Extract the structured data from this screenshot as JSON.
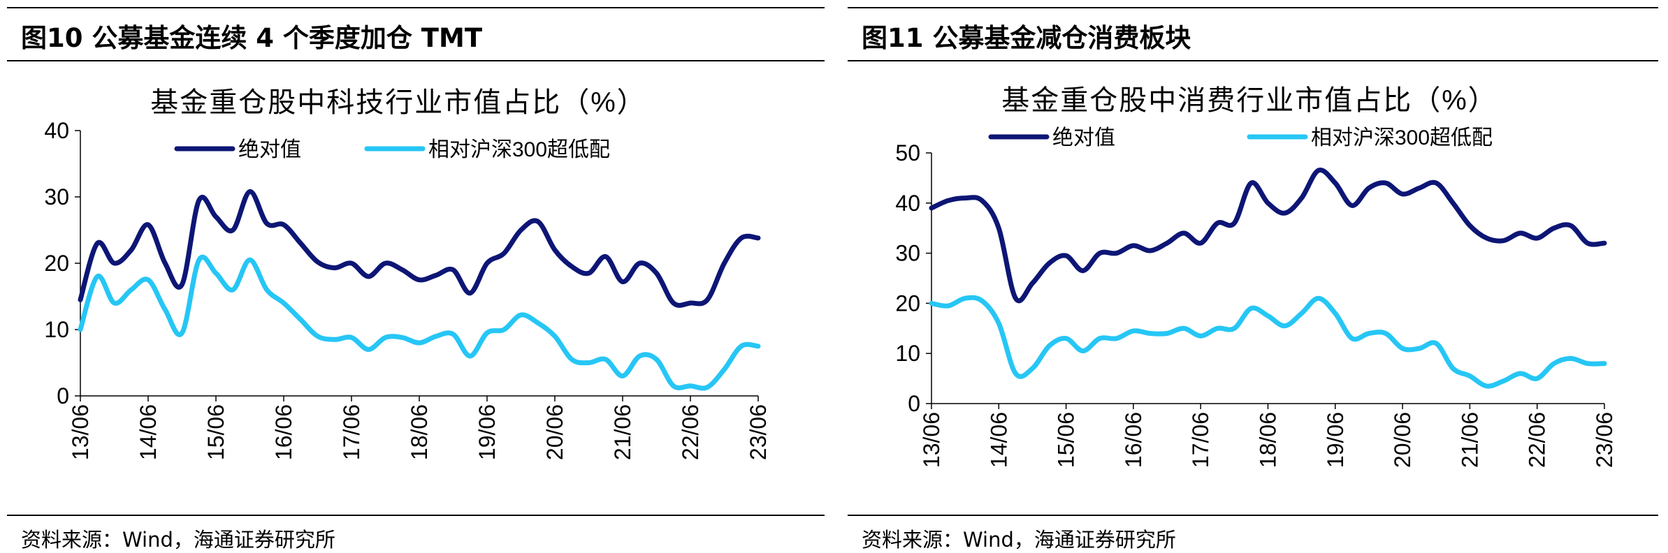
{
  "figures": [
    {
      "heading": "图10 公募基金连续 4 个季度加仓 TMT",
      "source": "资料来源：Wind，海通证券研究所",
      "chart_data": {
        "type": "line",
        "title": "基金重仓股中科技行业市值占比（%）",
        "xlabel": "",
        "ylabel": "",
        "ylim": [
          0,
          40
        ],
        "yticks": [
          0,
          10,
          20,
          30,
          40
        ],
        "categories": [
          "13/06",
          "14/06",
          "15/06",
          "16/06",
          "17/06",
          "18/06",
          "19/06",
          "20/06",
          "21/06",
          "22/06",
          "23/06"
        ],
        "legend_position": "top",
        "series": [
          {
            "name": "绝对值",
            "color": "#0d1675",
            "x": [
              0,
              0.25,
              0.5,
              0.75,
              1,
              1.25,
              1.5,
              1.75,
              2,
              2.25,
              2.5,
              2.75,
              3,
              3.25,
              3.5,
              3.75,
              4,
              4.25,
              4.5,
              4.75,
              5,
              5.25,
              5.5,
              5.75,
              6,
              6.25,
              6.5,
              6.75,
              7,
              7.25,
              7.5,
              7.75,
              8,
              8.25,
              8.5,
              8.75,
              9,
              9.25,
              9.5,
              9.75,
              10
            ],
            "values": [
              14.5,
              23,
              20,
              22,
              25.8,
              20,
              16.8,
              29.5,
              27,
              25,
              30.8,
              26,
              25.8,
              23,
              20.2,
              19.3,
              20,
              18,
              20,
              19,
              17.5,
              18.2,
              19,
              15.5,
              20,
              21.5,
              25,
              26.3,
              22,
              19.5,
              18.5,
              21,
              17.2,
              20,
              18.5,
              14,
              14,
              14.5,
              20,
              23.8,
              23.8
            ]
          },
          {
            "name": "相对沪深300超低配",
            "color": "#26c6f5",
            "x": [
              0,
              0.25,
              0.5,
              0.75,
              1,
              1.25,
              1.5,
              1.75,
              2,
              2.25,
              2.5,
              2.75,
              3,
              3.25,
              3.5,
              3.75,
              4,
              4.25,
              4.5,
              4.75,
              5,
              5.25,
              5.5,
              5.75,
              6,
              6.25,
              6.5,
              6.75,
              7,
              7.25,
              7.5,
              7.75,
              8,
              8.25,
              8.5,
              8.75,
              9,
              9.25,
              9.5,
              9.75,
              10
            ],
            "values": [
              10,
              18,
              14,
              16,
              17.5,
              13,
              9.5,
              20.5,
              18.5,
              16,
              20.5,
              16,
              14,
              11.5,
              9,
              8.5,
              8.8,
              7,
              8.8,
              8.8,
              8,
              9,
              9.3,
              6,
              9.5,
              10,
              12.2,
              11,
              9,
              5.5,
              5,
              5.5,
              3,
              6,
              5.5,
              1.5,
              1.5,
              1.3,
              4,
              7.5,
              7.5
            ]
          }
        ]
      }
    },
    {
      "heading": "图11 公募基金减仓消费板块",
      "source": "资料来源：Wind，海通证券研究所",
      "chart_data": {
        "type": "line",
        "title": "基金重仓股中消费行业市值占比（%）",
        "xlabel": "",
        "ylabel": "",
        "ylim": [
          0,
          50
        ],
        "yticks": [
          0,
          10,
          20,
          30,
          40,
          50
        ],
        "categories": [
          "13/06",
          "14/06",
          "15/06",
          "16/06",
          "17/06",
          "18/06",
          "19/06",
          "20/06",
          "21/06",
          "22/06",
          "23/06"
        ],
        "legend_position": "top",
        "series": [
          {
            "name": "绝对值",
            "color": "#0d1675",
            "x": [
              0,
              0.25,
              0.5,
              0.75,
              1,
              1.25,
              1.5,
              1.75,
              2,
              2.25,
              2.5,
              2.75,
              3,
              3.25,
              3.5,
              3.75,
              4,
              4.25,
              4.5,
              4.75,
              5,
              5.25,
              5.5,
              5.75,
              6,
              6.25,
              6.5,
              6.75,
              7,
              7.25,
              7.5,
              7.75,
              8,
              8.25,
              8.5,
              8.75,
              9,
              9.25,
              9.5,
              9.75,
              10
            ],
            "values": [
              39,
              40.5,
              41,
              40.5,
              35,
              21,
              24,
              28,
              29.5,
              26.5,
              30,
              30,
              31.5,
              30.5,
              32,
              34,
              32,
              36,
              36,
              44,
              40,
              38,
              41,
              46.5,
              44,
              39.5,
              43,
              44,
              41.8,
              43,
              44,
              40,
              35.5,
              33,
              32.5,
              34,
              33,
              35,
              35.5,
              32,
              32
            ]
          },
          {
            "name": "相对沪深300超低配",
            "color": "#26c6f5",
            "x": [
              0,
              0.25,
              0.5,
              0.75,
              1,
              1.25,
              1.5,
              1.75,
              2,
              2.25,
              2.5,
              2.75,
              3,
              3.25,
              3.5,
              3.75,
              4,
              4.25,
              4.5,
              4.75,
              5,
              5.25,
              5.5,
              5.75,
              6,
              6.25,
              6.5,
              6.75,
              7,
              7.25,
              7.5,
              7.75,
              8,
              8.25,
              8.5,
              8.75,
              9,
              9.25,
              9.5,
              9.75,
              10
            ],
            "values": [
              20,
              19.5,
              21,
              20.5,
              16,
              6,
              7,
              11.5,
              13,
              10.5,
              13,
              13,
              14.5,
              14,
              14,
              15,
              13.5,
              15,
              15,
              19,
              17.5,
              15.5,
              18,
              21,
              18,
              13,
              14,
              14,
              11,
              11,
              12,
              7,
              5.5,
              3.5,
              4.5,
              6,
              5,
              8,
              9,
              8,
              8
            ]
          }
        ]
      }
    }
  ]
}
